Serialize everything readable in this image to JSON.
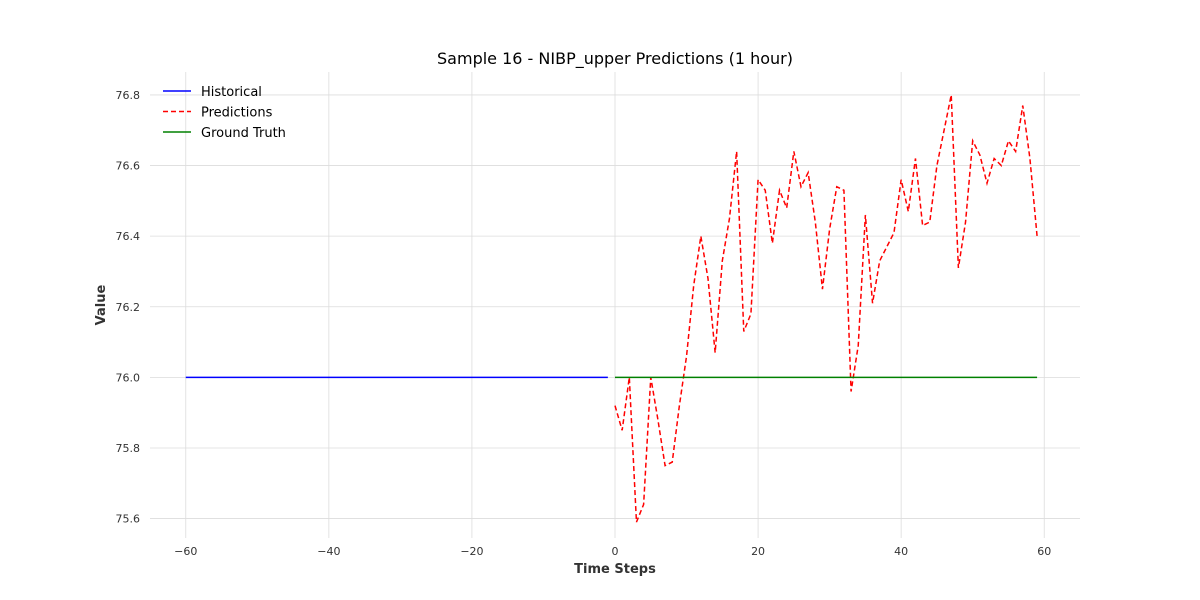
{
  "chart_data": {
    "type": "line",
    "title": "Sample 16 - NIBP_upper Predictions (1 hour)",
    "xlabel": "Time Steps",
    "ylabel": "Value",
    "xlim": [
      -65,
      65
    ],
    "ylim": [
      75.545,
      76.865
    ],
    "xticks": [
      -60,
      -40,
      -20,
      0,
      20,
      40,
      60
    ],
    "xtick_labels": [
      "−60",
      "−40",
      "−20",
      "0",
      "20",
      "40",
      "60"
    ],
    "yticks": [
      75.6,
      75.8,
      76.0,
      76.2,
      76.4,
      76.6,
      76.8
    ],
    "ytick_labels": [
      "75.6",
      "75.8",
      "76.0",
      "76.2",
      "76.4",
      "76.6",
      "76.8"
    ],
    "grid": true,
    "legend_position": "top-left",
    "series": [
      {
        "name": "Historical",
        "color": "#0000ff",
        "style": "solid",
        "x_start": -60,
        "x_end": -1,
        "constant_value": 76.0
      },
      {
        "name": "Predictions",
        "color": "#ff0000",
        "style": "dashed",
        "x_start": 0,
        "values": [
          75.92,
          75.85,
          76.0,
          75.59,
          75.64,
          76.0,
          75.88,
          75.75,
          75.76,
          75.92,
          76.06,
          76.26,
          76.4,
          76.28,
          76.07,
          76.33,
          76.45,
          76.64,
          76.13,
          76.18,
          76.56,
          76.53,
          76.38,
          76.53,
          76.48,
          76.64,
          76.54,
          76.58,
          76.44,
          76.25,
          76.42,
          76.54,
          76.53,
          75.96,
          76.09,
          76.46,
          76.21,
          76.33,
          76.37,
          76.41,
          76.56,
          76.47,
          76.62,
          76.43,
          76.44,
          76.6,
          76.7,
          76.8,
          76.31,
          76.44,
          76.67,
          76.63,
          76.55,
          76.62,
          76.6,
          76.67,
          76.64,
          76.77,
          76.62,
          76.4
        ]
      },
      {
        "name": "Ground Truth",
        "color": "#008000",
        "style": "solid",
        "x_start": 0,
        "x_end": 59,
        "constant_value": 76.0
      }
    ]
  }
}
